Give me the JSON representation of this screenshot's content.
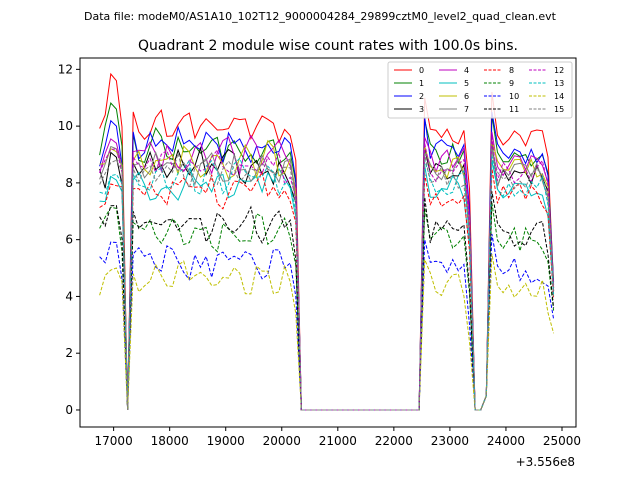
{
  "file_label": "Data file: modeM0/AS1A10_102T12_9000004284_29899cztM0_level2_quad_clean.evt",
  "chart_data": {
    "type": "line",
    "title": "Quadrant 2 module wise count rates with 100.0s bins.",
    "xlabel": "",
    "ylabel": "",
    "x_offset_label": "+3.556e8",
    "xlim": [
      16400,
      25250
    ],
    "ylim": [
      -0.6,
      12.4
    ],
    "x_ticks": [
      17000,
      18000,
      19000,
      20000,
      21000,
      22000,
      23000,
      24000,
      25000
    ],
    "y_ticks": [
      0,
      2,
      4,
      6,
      8,
      10,
      12
    ],
    "grid": false,
    "legend_position": "top-right",
    "x": [
      16750,
      16850,
      16950,
      17050,
      17150,
      17250,
      17350,
      17450,
      17550,
      17650,
      17750,
      17850,
      17950,
      18050,
      18150,
      18250,
      18350,
      18450,
      18550,
      18650,
      18750,
      18850,
      18950,
      19050,
      19150,
      19250,
      19350,
      19450,
      19550,
      19650,
      19750,
      19850,
      19950,
      20050,
      20150,
      20250,
      20350,
      20450,
      20550,
      20650,
      20750,
      20850,
      20950,
      21050,
      21150,
      21250,
      21350,
      21450,
      21550,
      21650,
      21750,
      21850,
      21950,
      22050,
      22150,
      22250,
      22350,
      22450,
      22550,
      22650,
      22750,
      22850,
      22950,
      23050,
      23150,
      23250,
      23350,
      23450,
      23550,
      23650,
      23750,
      23850,
      23950,
      24050,
      24150,
      24250,
      24350,
      24450,
      24550,
      24650,
      24750,
      24850
    ],
    "series": [
      {
        "name": "0",
        "color": "#ff0000",
        "dash": "solid",
        "level": 10.0,
        "peaks": [
          10.2,
          10.7,
          11.6
        ],
        "spike": 11.0,
        "end": 4.3
      },
      {
        "name": "1",
        "color": "#008000",
        "dash": "solid",
        "level": 9.2,
        "peaks": [
          9.6,
          10.0,
          10.6
        ],
        "spike": 10.2,
        "end": 4.5
      },
      {
        "name": "2",
        "color": "#0000ff",
        "dash": "solid",
        "level": 9.3,
        "peaks": [
          9.0,
          9.5,
          10.0
        ],
        "spike": 10.3,
        "end": 4.4
      },
      {
        "name": "3",
        "color": "#000000",
        "dash": "solid",
        "level": 8.5,
        "peaks": [
          8.7,
          8.2,
          8.9
        ],
        "spike": 9.2,
        "end": 4.2
      },
      {
        "name": "4",
        "color": "#bf00bf",
        "dash": "solid",
        "level": 9.0,
        "peaks": [
          8.9,
          9.1,
          9.4
        ],
        "spike": 9.6,
        "end": 4.3
      },
      {
        "name": "5",
        "color": "#00bfbf",
        "dash": "solid",
        "level": 8.0,
        "peaks": [
          7.7,
          7.6,
          8.1
        ],
        "spike": 8.6,
        "end": 4.1
      },
      {
        "name": "6",
        "color": "#bfbf00",
        "dash": "solid",
        "level": 8.8,
        "peaks": [
          8.8,
          8.6,
          9.1
        ],
        "spike": 9.3,
        "end": 4.2
      },
      {
        "name": "7",
        "color": "#808080",
        "dash": "solid",
        "level": 8.6,
        "peaks": [
          8.6,
          8.8,
          9.2
        ],
        "spike": 9.1,
        "end": 4.2
      },
      {
        "name": "8",
        "color": "#ff0000",
        "dash": "dashed",
        "level": 7.8,
        "peaks": [
          7.4,
          7.6,
          7.9
        ],
        "spike": 8.3,
        "end": 3.9
      },
      {
        "name": "9",
        "color": "#008000",
        "dash": "dashed",
        "level": 6.3,
        "peaks": [
          7.0,
          6.8,
          7.1
        ],
        "spike": 7.1,
        "end": 3.5
      },
      {
        "name": "10",
        "color": "#0000ff",
        "dash": "dashed",
        "level": 5.2,
        "peaks": [
          5.8,
          5.4,
          5.9
        ],
        "spike": 6.0,
        "end": 3.2
      },
      {
        "name": "11",
        "color": "#000000",
        "dash": "dashed",
        "level": 6.5,
        "peaks": [
          7.0,
          6.9,
          7.2
        ],
        "spike": 7.5,
        "end": 3.6
      },
      {
        "name": "12",
        "color": "#bf00bf",
        "dash": "dashed",
        "level": 8.7,
        "peaks": [
          8.9,
          8.9,
          9.2
        ],
        "spike": 9.4,
        "end": 4.1
      },
      {
        "name": "13",
        "color": "#00bfbf",
        "dash": "dashed",
        "level": 8.2,
        "peaks": [
          8.0,
          7.9,
          8.3
        ],
        "spike": 8.8,
        "end": 4.0
      },
      {
        "name": "14",
        "color": "#bfbf00",
        "dash": "dashed",
        "level": 4.6,
        "peaks": [
          4.7,
          4.7,
          5.0
        ],
        "spike": 5.3,
        "end": 2.7
      },
      {
        "name": "15",
        "color": "#808080",
        "dash": "dashed",
        "level": 8.4,
        "peaks": [
          8.4,
          8.5,
          8.8
        ],
        "spike": 9.0,
        "end": 4.0
      }
    ]
  }
}
